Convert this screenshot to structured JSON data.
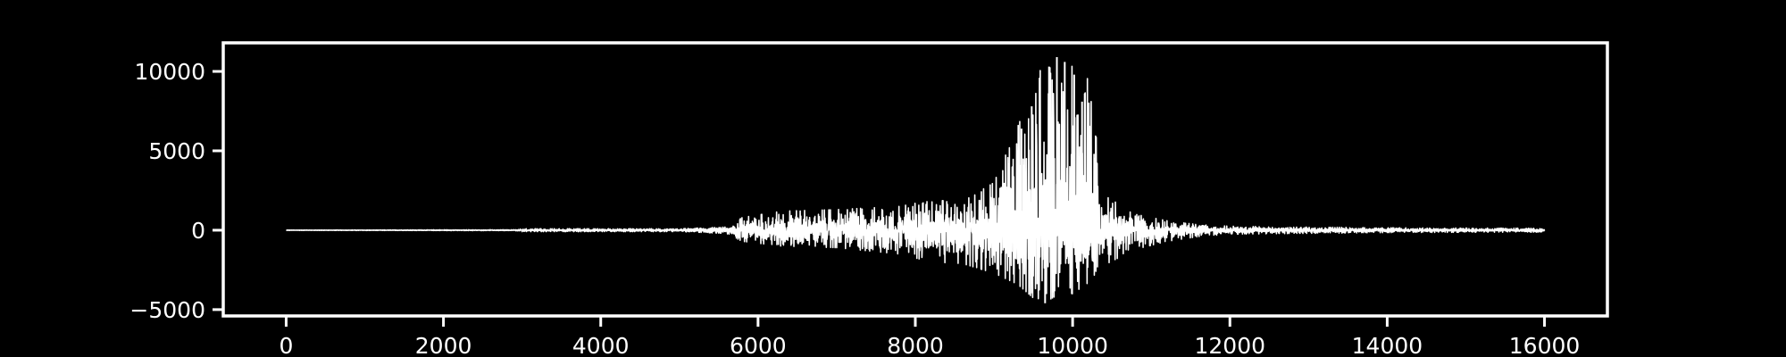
{
  "colors": {
    "background": "#000000",
    "foreground": "#ffffff"
  },
  "chart_data": {
    "type": "line",
    "title": "",
    "xlabel": "",
    "ylabel": "",
    "xlim": [
      -800,
      16800
    ],
    "ylim": [
      -5400,
      11800
    ],
    "grid": false,
    "legend": "none",
    "x_ticks": [
      0,
      2000,
      4000,
      6000,
      8000,
      10000,
      12000,
      14000,
      16000
    ],
    "x_tick_labels": [
      "0",
      "2000",
      "4000",
      "6000",
      "8000",
      "10000",
      "12000",
      "14000",
      "16000"
    ],
    "y_ticks": [
      -5000,
      0,
      5000,
      10000
    ],
    "y_tick_labels": [
      "−5000",
      "0",
      "5000",
      "10000"
    ],
    "series": [
      {
        "color": "#ffffff",
        "x_start": 0,
        "x_end": 16000,
        "sample_step": 4,
        "envelope": [
          {
            "x": 0,
            "pos": 10,
            "neg": -10
          },
          {
            "x": 2900,
            "pos": 30,
            "neg": -30
          },
          {
            "x": 3000,
            "pos": 90,
            "neg": -90
          },
          {
            "x": 5000,
            "pos": 90,
            "neg": -90
          },
          {
            "x": 5600,
            "pos": 200,
            "neg": -200
          },
          {
            "x": 5800,
            "pos": 800,
            "neg": -700
          },
          {
            "x": 6300,
            "pos": 1200,
            "neg": -1000
          },
          {
            "x": 7000,
            "pos": 1300,
            "neg": -1100
          },
          {
            "x": 7800,
            "pos": 1500,
            "neg": -1500
          },
          {
            "x": 8200,
            "pos": 1900,
            "neg": -2000
          },
          {
            "x": 8600,
            "pos": 1800,
            "neg": -2100
          },
          {
            "x": 9000,
            "pos": 3000,
            "neg": -2700
          },
          {
            "x": 9300,
            "pos": 6500,
            "neg": -3400
          },
          {
            "x": 9600,
            "pos": 10200,
            "neg": -4700
          },
          {
            "x": 9800,
            "pos": 10900,
            "neg": -4100
          },
          {
            "x": 10000,
            "pos": 10300,
            "neg": -4000
          },
          {
            "x": 10200,
            "pos": 9500,
            "neg": -3300
          },
          {
            "x": 10400,
            "pos": 2200,
            "neg": -2200
          },
          {
            "x": 10800,
            "pos": 1000,
            "neg": -1200
          },
          {
            "x": 11200,
            "pos": 600,
            "neg": -700
          },
          {
            "x": 11600,
            "pos": 350,
            "neg": -400
          },
          {
            "x": 12000,
            "pos": 250,
            "neg": -250
          },
          {
            "x": 14000,
            "pos": 150,
            "neg": -150
          },
          {
            "x": 16000,
            "pos": 120,
            "neg": -120
          }
        ],
        "spikes": [
          {
            "x": 9350,
            "y": 6400
          },
          {
            "x": 9480,
            "y": 7800
          },
          {
            "x": 9580,
            "y": 9600
          },
          {
            "x": 9700,
            "y": 10300
          },
          {
            "x": 9800,
            "y": 10900
          },
          {
            "x": 9900,
            "y": 10600
          },
          {
            "x": 10020,
            "y": 9800
          },
          {
            "x": 10120,
            "y": 8100
          },
          {
            "x": 9650,
            "y": -4600
          },
          {
            "x": 9750,
            "y": -3900
          },
          {
            "x": 9550,
            "y": -3400
          }
        ]
      }
    ]
  }
}
